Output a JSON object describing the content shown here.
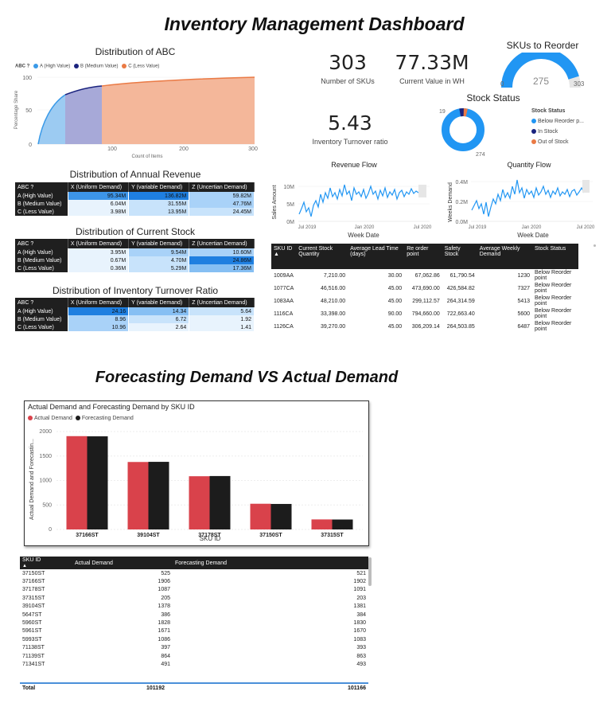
{
  "dashboard_title": "Inventory Management Dashboard",
  "abc": {
    "title": "Distribution of ABC",
    "legend_title": "ABC ?",
    "legend": [
      {
        "label": "A (High Value)",
        "color": "#3a9ae8"
      },
      {
        "label": "B (Medium Value)",
        "color": "#1a237e"
      },
      {
        "label": "C (Less Value)",
        "color": "#ea7a45"
      }
    ],
    "ylabel": "Percentage Share",
    "xlabel": "Count of Items",
    "yticks": [
      "100",
      "50",
      "0"
    ],
    "xticks": [
      "100",
      "200",
      "300"
    ]
  },
  "cards": {
    "skus_value": "303",
    "skus_label": "Number of SKUs",
    "stock_value": "77.33M",
    "stock_label": "Current Value in WH",
    "turnover_value": "5.43",
    "turnover_label": "Inventory Turnover ratio"
  },
  "gauge": {
    "title": "SKUs to Reorder",
    "min": "0",
    "value": "275",
    "max": "303",
    "fraction": 0.9076
  },
  "stock_status": {
    "title": "Stock Status",
    "legend_title": "Stock Status",
    "legend": [
      {
        "label": "Below Reorder p...",
        "color": "#2196f3"
      },
      {
        "label": "In Stock",
        "color": "#1a237e"
      },
      {
        "label": "Out of Stock",
        "color": "#ea7a45"
      }
    ],
    "top_label": "19",
    "bottom_label": "274"
  },
  "matrix_headers": [
    "ABC ?",
    "X (Uniform Demand)",
    "Y (variable Demand)",
    "Z (Uncertian Demand)"
  ],
  "revenue_matrix": {
    "title": "Distribution of Annual Revenue",
    "rows": [
      {
        "label": "A (High Value)",
        "x": "95.34M",
        "y": "136.82M",
        "z": "59.82M"
      },
      {
        "label": "B (Medium Value)",
        "x": "6.04M",
        "y": "31.55M",
        "z": "47.76M"
      },
      {
        "label": "C (Less Value)",
        "x": "3.98M",
        "y": "13.95M",
        "z": "24.45M"
      }
    ]
  },
  "stock_matrix": {
    "title": "Distribution of Current Stock",
    "rows": [
      {
        "label": "A (High Value)",
        "x": "3.95M",
        "y": "9.54M",
        "z": "10.60M"
      },
      {
        "label": "B (Medium Value)",
        "x": "0.67M",
        "y": "4.70M",
        "z": "24.86M"
      },
      {
        "label": "C (Less Value)",
        "x": "0.36M",
        "y": "5.29M",
        "z": "17.36M"
      }
    ]
  },
  "turnover_matrix": {
    "title": "Distribution of Inventory Turnover Ratio",
    "rows": [
      {
        "label": "A (High Value)",
        "x": "24.16",
        "y": "14.34",
        "z": "5.64"
      },
      {
        "label": "B (Medium Value)",
        "x": "8.96",
        "y": "6.72",
        "z": "1.92"
      },
      {
        "label": "C (Less Value)",
        "x": "10.96",
        "y": "2.64",
        "z": "1.41"
      }
    ]
  },
  "revenue_flow": {
    "title": "Revenue Flow",
    "xlabel": "Week Date",
    "ylabel": "Sales Amount",
    "yticks": [
      "10M",
      "5M",
      "0M"
    ],
    "xticks": [
      "Jul 2019",
      "Jan 2020",
      "Jul 2020"
    ]
  },
  "quantity_flow": {
    "title": "Quantity Flow",
    "xlabel": "Week Date",
    "ylabel": "Weeks Demand",
    "yticks": [
      "0.4M",
      "0.2M",
      "0.0M"
    ],
    "xticks": [
      "Jul 2019",
      "Jan 2020",
      "Jul 2020"
    ]
  },
  "sku_table": {
    "headers": [
      "SKU ID",
      "Current Stock Quantity",
      "Average Lead Time (days)",
      "Re order point",
      "Safety Stock",
      "Average Weekly Demand",
      "Stock Status"
    ],
    "rows": [
      [
        "1009AA",
        "7,210.00",
        "30.00",
        "67,062.86",
        "61,790.54",
        "1230",
        "Below Reorder point"
      ],
      [
        "1077CA",
        "46,516.00",
        "45.00",
        "473,690.00",
        "426,584.82",
        "7327",
        "Below Reorder point"
      ],
      [
        "1083AA",
        "48,210.00",
        "45.00",
        "299,112.57",
        "264,314.59",
        "5413",
        "Below Reorder point"
      ],
      [
        "1116CA",
        "33,398.00",
        "90.00",
        "794,660.00",
        "722,663.40",
        "5600",
        "Below Reorder point"
      ],
      [
        "1126CA",
        "39,270.00",
        "45.00",
        "306,209.14",
        "264,503.85",
        "6487",
        "Below Reorder point"
      ]
    ]
  },
  "forecast_title": "Forecasting Demand VS Actual Demand",
  "chart_data": {
    "type": "bar",
    "title": "Actual Demand and Forecasting Demand by SKU ID",
    "xlabel": "SKU ID",
    "ylabel": "Actual Demand and Forecastin...",
    "categories": [
      "37166ST",
      "39104ST",
      "37178ST",
      "37150ST",
      "37315ST"
    ],
    "series": [
      {
        "name": "Actual Demand",
        "color": "#d9424b",
        "values": [
          1906,
          1378,
          1087,
          525,
          205
        ]
      },
      {
        "name": "Forecasting Demand",
        "color": "#1c1c1c",
        "values": [
          1902,
          1381,
          1091,
          521,
          203
        ]
      }
    ],
    "yticks": [
      "2000",
      "1500",
      "1000",
      "500",
      "0"
    ],
    "ylim": [
      0,
      2000
    ]
  },
  "demand_table": {
    "headers": [
      "SKU ID",
      "Actual Demand",
      "Forecasting Demand"
    ],
    "rows": [
      [
        "37150ST",
        "525",
        "521"
      ],
      [
        "37166ST",
        "1906",
        "1902"
      ],
      [
        "37178ST",
        "1087",
        "1091"
      ],
      [
        "37315ST",
        "205",
        "203"
      ],
      [
        "39104ST",
        "1378",
        "1381"
      ],
      [
        "5647ST",
        "386",
        "384"
      ],
      [
        "5960ST",
        "1828",
        "1830"
      ],
      [
        "5961ST",
        "1671",
        "1670"
      ],
      [
        "5993ST",
        "1086",
        "1083"
      ],
      [
        "71138ST",
        "397",
        "393"
      ],
      [
        "71139ST",
        "864",
        "863"
      ],
      [
        "71341ST",
        "491",
        "493"
      ]
    ],
    "total_label": "Total",
    "total_actual": "101192",
    "total_forecast": "101166"
  }
}
